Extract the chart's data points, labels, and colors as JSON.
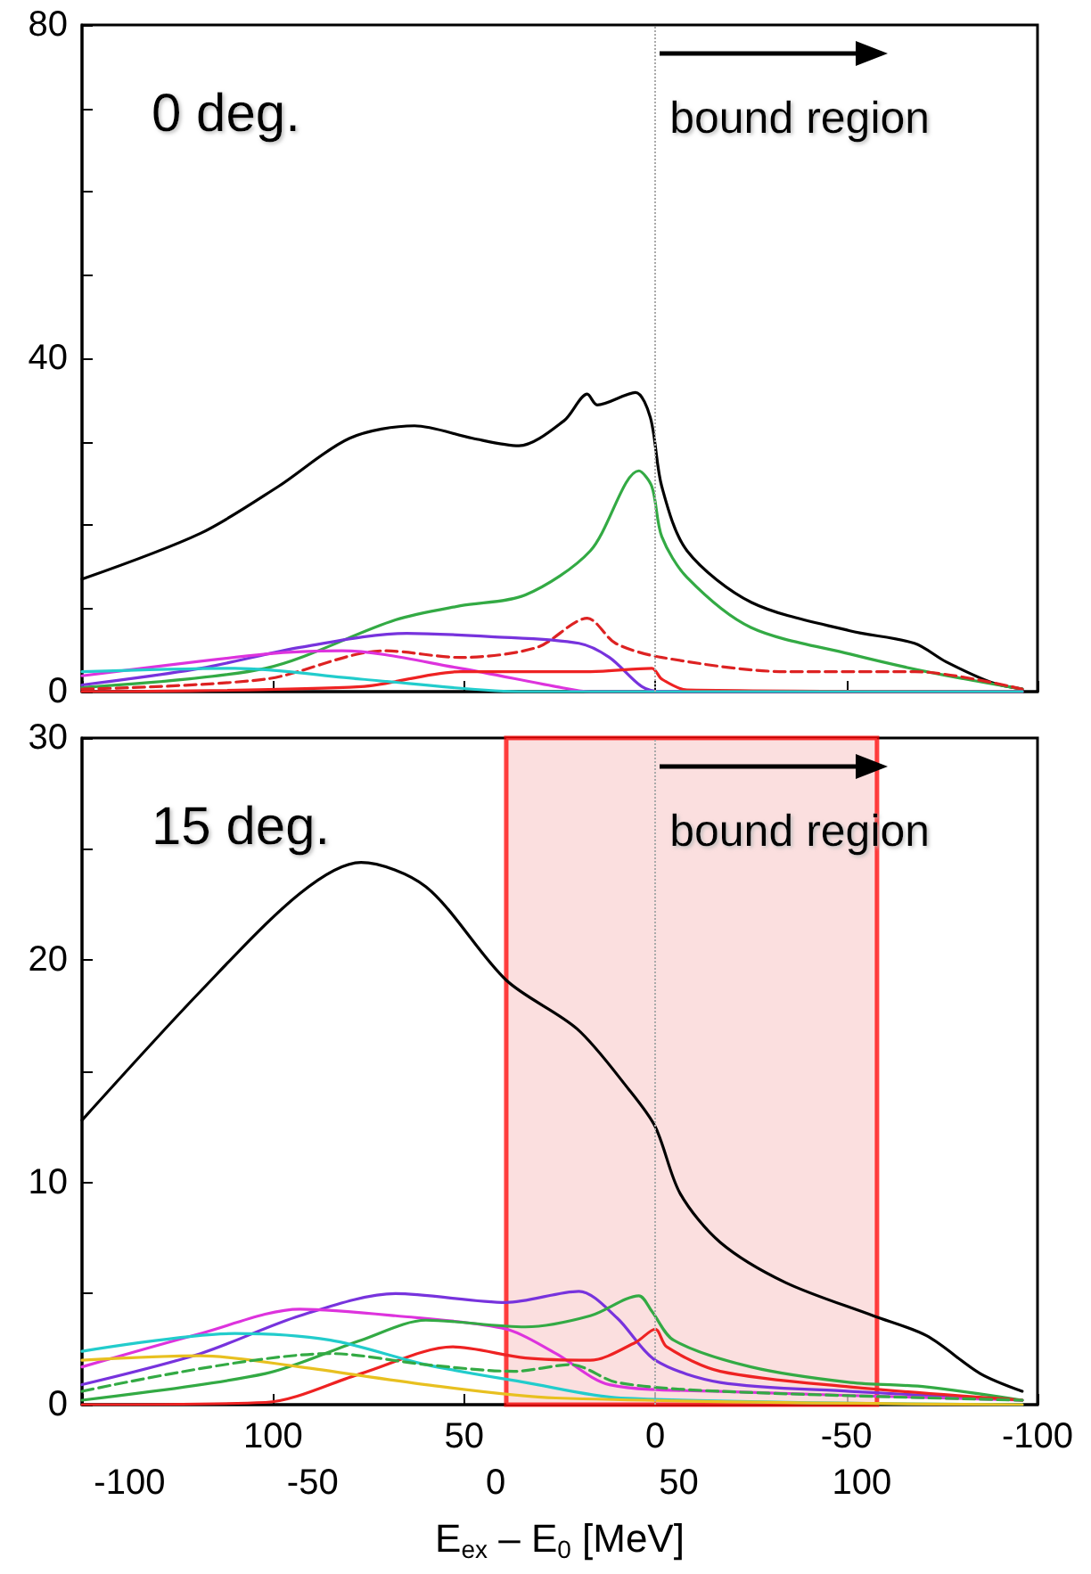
{
  "chart_data": [
    {
      "type": "line",
      "title": "0 deg.",
      "xlim": [
        150,
        -100
      ],
      "xticks": [
        {
          "value": 150,
          "label": null
        },
        100,
        50,
        0,
        -50,
        -100
      ],
      "ylim": [
        0,
        80
      ],
      "yticks": [
        0,
        {
          "value": 10,
          "label": null
        },
        {
          "value": 20,
          "label": null
        },
        {
          "value": 30,
          "label": null
        },
        40,
        {
          "value": 50,
          "label": null
        },
        {
          "value": 60,
          "label": null
        },
        {
          "value": 70,
          "label": null
        },
        80
      ],
      "tick_labels": "y",
      "ref_lines": [
        {
          "axis": "x",
          "value": 0,
          "label": "bound region",
          "color": "#aaaaaa",
          "line_style": "dotted"
        }
      ],
      "series": [
        {
          "color": "#000000",
          "x": [
            150,
            119,
            98.7,
            80,
            63,
            47.8,
            35.7,
            23.9,
            17.8,
            15.2,
            5.2,
            1.3,
            -1.7,
            -8.3,
            -25.2,
            -50.9,
            -67.8,
            -76,
            -88,
            -96
          ],
          "values": [
            13.5,
            19.0,
            24.6,
            30.4,
            31.9,
            30.4,
            29.5,
            32.5,
            35.7,
            34.4,
            35.9,
            32.9,
            24.6,
            16.9,
            10.7,
            7.3,
            5.8,
            3.6,
            1.1,
            0.3
          ]
        },
        {
          "color": "#33aa44",
          "x": [
            150,
            102,
            68,
            51,
            34,
            17,
            4.3,
            0.9,
            -1.7,
            -8.3,
            -25,
            -51,
            -71,
            -96
          ],
          "values": [
            0.5,
            2.8,
            8.6,
            10.3,
            11.6,
            16.9,
            26.5,
            24.6,
            18.6,
            13.7,
            7.7,
            4.5,
            2.4,
            0.3
          ]
        },
        {
          "color": "#dd2222",
          "line_style": "dashed",
          "x": [
            150,
            102,
            71,
            51,
            31,
            17.8,
            10.4,
            -1.7,
            -34,
            -68,
            -96
          ],
          "values": [
            0.3,
            1.5,
            4.9,
            4.1,
            5.3,
            8.8,
            5.8,
            4.1,
            2.4,
            2.4,
            0.3
          ]
        },
        {
          "color": "#7733dd",
          "x": [
            150,
            119,
            93,
            65,
            43,
            20,
            12,
            3.5,
            -1.7,
            -96
          ],
          "values": [
            0.8,
            2.8,
            5.3,
            7.0,
            6.6,
            5.8,
            4.1,
            0.6,
            0,
            0
          ]
        },
        {
          "color": "#dd33dd",
          "x": [
            150,
            102,
            82,
            51,
            26,
            17,
            -96
          ],
          "values": [
            1.9,
            4.5,
            4.9,
            2.8,
            0.6,
            0,
            0
          ]
        },
        {
          "color": "#ee2222",
          "x": [
            150,
            77,
            51,
            17,
            0.9,
            -1.7,
            -8.3,
            -96
          ],
          "values": [
            0,
            0.6,
            2.4,
            2.4,
            2.8,
            1.5,
            0.2,
            0
          ]
        },
        {
          "color": "#22cccc",
          "x": [
            150,
            110,
            77,
            34,
            -96
          ],
          "values": [
            2.4,
            2.8,
            1.5,
            0,
            0
          ]
        }
      ]
    },
    {
      "type": "line",
      "title": "15 deg.",
      "xlabel": "E$_{ex}$ – E$_{0}$ [MeV]",
      "xlim": [
        150,
        -100
      ],
      "xticks": [
        {
          "value": 150,
          "label": null
        },
        100,
        50,
        0,
        -50,
        -100
      ],
      "x2lim": [
        -113,
        148
      ],
      "x2ticks": [
        -100,
        -50,
        0,
        50,
        100
      ],
      "ylim": [
        0,
        30
      ],
      "yticks": [
        0,
        {
          "value": 5,
          "label": null
        },
        10,
        {
          "value": 15,
          "label": null
        },
        20,
        {
          "value": 25,
          "label": null
        },
        30
      ],
      "ref_lines": [
        {
          "axis": "x",
          "value": 0,
          "label": "bound region",
          "color": "#aaaaaa",
          "line_style": "dotted"
        }
      ],
      "bands": [
        {
          "axis": "x",
          "from": 39,
          "to": -58,
          "color": "#f9d4d4"
        }
      ],
      "series": [
        {
          "color": "#000000",
          "x": [
            150,
            119,
            93,
            77,
            60,
            39,
            20.4,
            7,
            0,
            -6.5,
            -17,
            -34,
            -57,
            -71,
            -85,
            -96
          ],
          "values": [
            12.8,
            18.6,
            23.0,
            24.4,
            23.3,
            19.1,
            16.9,
            14.2,
            12.5,
            9.5,
            7.3,
            5.5,
            4.0,
            3.1,
            1.4,
            0.6
          ]
        },
        {
          "color": "#7733dd",
          "x": [
            150,
            119,
            93,
            68,
            39,
            20,
            10,
            0,
            -17,
            -51,
            -96
          ],
          "values": [
            0.9,
            2.3,
            4.0,
            5.0,
            4.6,
            5.1,
            3.9,
            2.0,
            1.0,
            0.6,
            0.2
          ]
        },
        {
          "color": "#dd33dd",
          "x": [
            150,
            119,
            93,
            68,
            39,
            26,
            12,
            -17,
            -96
          ],
          "values": [
            1.7,
            3.2,
            4.3,
            4.0,
            3.4,
            2.3,
            0.9,
            0.6,
            0.2
          ]
        },
        {
          "color": "#33aa44",
          "x": [
            150,
            102,
            77,
            60,
            34,
            17,
            4.3,
            0.9,
            -4.8,
            -25,
            -51,
            -71,
            -96
          ],
          "values": [
            0.2,
            1.4,
            2.9,
            3.8,
            3.5,
            4.0,
            4.9,
            4.2,
            2.9,
            1.7,
            1.0,
            0.8,
            0.2
          ]
        },
        {
          "color": "#ee2222",
          "x": [
            150,
            102,
            77,
            53,
            34,
            17,
            5.2,
            0,
            -3,
            -17,
            -51,
            -96
          ],
          "values": [
            0,
            0.1,
            1.4,
            2.6,
            2.1,
            2.0,
            2.8,
            3.4,
            2.6,
            1.5,
            0.8,
            0.2
          ]
        },
        {
          "color": "#22cccc",
          "x": [
            150,
            110,
            85,
            60,
            34,
            9,
            -96
          ],
          "values": [
            2.4,
            3.2,
            2.9,
            1.8,
            1.0,
            0.3,
            0
          ]
        },
        {
          "color": "#e8c020",
          "x": [
            150,
            119,
            93,
            60,
            26,
            -96
          ],
          "values": [
            2.0,
            2.2,
            1.7,
            0.9,
            0.3,
            0
          ]
        },
        {
          "color": "#33aa44",
          "line_style": "dashed",
          "x": [
            150,
            85,
            60,
            37,
            22,
            10,
            -17,
            -96
          ],
          "values": [
            0.6,
            2.3,
            1.8,
            1.5,
            1.8,
            1.0,
            0.6,
            0.2
          ]
        }
      ]
    }
  ]
}
